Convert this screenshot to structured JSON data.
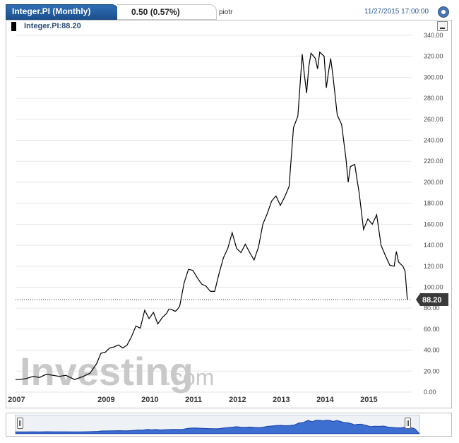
{
  "header": {
    "title": "Integer.PI (Monthly)",
    "change": "0.50 (0.57%)",
    "user": "piotr",
    "datetime": "11/27/2015 17:00:00"
  },
  "legend": {
    "label": "Integer.PI:88.20"
  },
  "watermark": {
    "brand": "Investing",
    "suffix": ".com"
  },
  "chart_data": {
    "type": "line",
    "ylim": [
      0,
      340
    ],
    "yticks": [
      "0.00",
      "20.00",
      "40.00",
      "60.00",
      "80.00",
      "100.00",
      "120.00",
      "140.00",
      "160.00",
      "180.00",
      "200.00",
      "220.00",
      "240.00",
      "260.00",
      "280.00",
      "300.00",
      "320.00",
      "340.00"
    ],
    "xticks": [
      "2007",
      "2009",
      "2010",
      "2011",
      "2012",
      "2013",
      "2014",
      "2015"
    ],
    "xlim": [
      2006.85,
      2015.9
    ],
    "last_value_label": "88.20",
    "last_value": 88.2,
    "series": [
      {
        "x": [
          2006.85,
          2006.95,
          2007.1,
          2007.25,
          2007.4,
          2007.55,
          2007.7,
          2007.85,
          2008.0,
          2008.2,
          2008.4,
          2008.55,
          2008.7,
          2008.8,
          2008.9,
          2009.0,
          2009.1,
          2009.2,
          2009.3,
          2009.4,
          2009.5,
          2009.6,
          2009.7,
          2009.8,
          2009.9,
          2010.0,
          2010.1,
          2010.2,
          2010.3,
          2010.35,
          2010.4,
          2010.5,
          2010.55,
          2010.6,
          2010.7,
          2010.8,
          2010.9,
          2011.0,
          2011.1,
          2011.2,
          2011.3,
          2011.4,
          2011.5,
          2011.6,
          2011.7,
          2011.8,
          2011.9,
          2012.0,
          2012.1,
          2012.2,
          2012.3,
          2012.4,
          2012.5,
          2012.6,
          2012.7,
          2012.8,
          2012.9,
          2013.0,
          2013.1,
          2013.2,
          2013.3,
          2013.4,
          2013.45,
          2013.5,
          2013.55,
          2013.6,
          2013.7,
          2013.75,
          2013.8,
          2013.9,
          2013.95,
          2014.0,
          2014.05,
          2014.1,
          2014.2,
          2014.3,
          2014.4,
          2014.45,
          2014.5,
          2014.6,
          2014.65,
          2014.7,
          2014.8,
          2014.9,
          2015.0,
          2015.1,
          2015.2,
          2015.3,
          2015.4,
          2015.5,
          2015.55,
          2015.6,
          2015.7,
          2015.75,
          2015.8
        ],
        "y": [
          12,
          12,
          13,
          15,
          14,
          17,
          16,
          15,
          16,
          12,
          15,
          18,
          27,
          37,
          38,
          42,
          43,
          45,
          42,
          45,
          53,
          63,
          61,
          78,
          70,
          76,
          65,
          71,
          75,
          79,
          79,
          77,
          79,
          82,
          104,
          117,
          116,
          109,
          103,
          101,
          96,
          96,
          113,
          128,
          137,
          152,
          137,
          133,
          141,
          133,
          126,
          138,
          160,
          170,
          182,
          187,
          178,
          186,
          196,
          252,
          263,
          322,
          302,
          285,
          310,
          323,
          318,
          308,
          324,
          320,
          290,
          305,
          318,
          302,
          264,
          255,
          222,
          200,
          215,
          217,
          203,
          190,
          155,
          165,
          160,
          169,
          140,
          130,
          121,
          120,
          134,
          124,
          120,
          115,
          88.2
        ]
      }
    ]
  }
}
